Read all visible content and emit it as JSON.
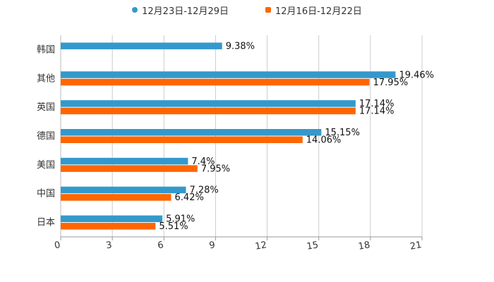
{
  "chart_data": {
    "type": "bar",
    "orientation": "horizontal",
    "title": "",
    "xlabel": "",
    "ylabel": "",
    "categories": [
      "韩国",
      "其他",
      "英国",
      "德国",
      "美国",
      "中国",
      "日本"
    ],
    "series": [
      {
        "name": "12月23日-12月29日",
        "color": "#3399CC",
        "values": [
          9.38,
          19.46,
          17.14,
          15.15,
          7.4,
          7.28,
          5.91
        ],
        "labels": [
          "9.38%",
          "19.46%",
          "17.14%",
          "15.15%",
          "7.4%",
          "7.28%",
          "5.91%"
        ]
      },
      {
        "name": "12月16日-12月22日",
        "color": "#FF6600",
        "values": [
          null,
          17.95,
          17.14,
          14.06,
          7.95,
          6.42,
          5.51
        ],
        "labels": [
          "",
          "17.95%",
          "17.14%",
          "14.06%",
          "7.95%",
          "6.42%",
          "5.51%"
        ]
      }
    ],
    "xlim": [
      0,
      21
    ],
    "ticks": [
      0,
      3,
      6,
      9,
      12,
      15,
      18,
      21
    ],
    "tick_labels": [
      "0",
      "3",
      "6",
      "9",
      "12",
      "15",
      "18",
      "21"
    ],
    "grid": true,
    "legend_position": "top-center"
  }
}
